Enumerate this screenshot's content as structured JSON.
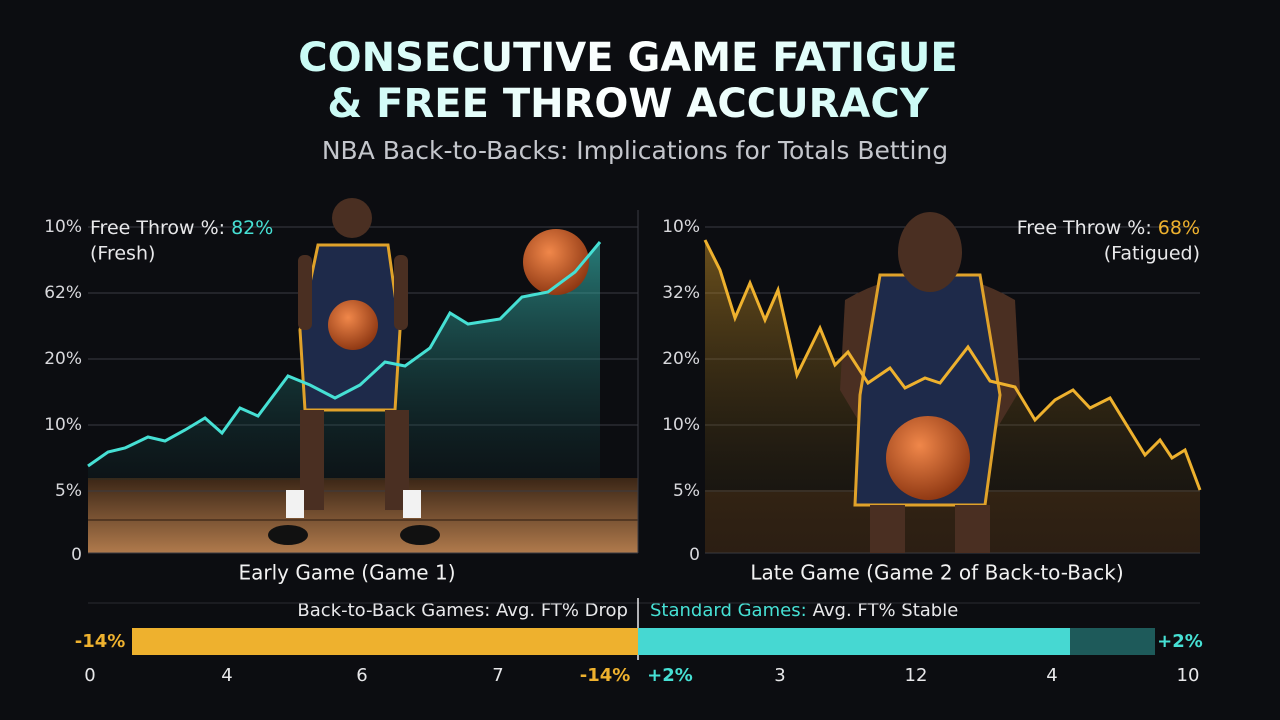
{
  "header": {
    "title_line1": "CONSECUTIVE GAME FATIGUE",
    "title_line2": "& FREE THROW ACCURACY",
    "subtitle": "NBA Back-to-Backs: Implications for Totals Betting"
  },
  "panels": [
    {
      "axis_labels": [
        "10%",
        "62%",
        "20%",
        "10%",
        "5%",
        "0"
      ],
      "stat_label": "Free Throw %:",
      "stat_value": "82%",
      "stat_note": "(Fresh)",
      "caption": "Early Game (Game 1)"
    },
    {
      "axis_labels": [
        "10%",
        "32%",
        "20%",
        "10%",
        "5%",
        "0"
      ],
      "stat_label": "Free Throw %:",
      "stat_value": "68%",
      "stat_note": "(Fatigued)",
      "caption": "Late Game (Game 2 of Back-to-Back)"
    }
  ],
  "comparison": {
    "left_label": "Back-to-Back Games: Avg. FT% Drop",
    "right_label_lead": "Standard Games:",
    "right_label_rest": "Avg. FT% Stable",
    "left_value": "-14%",
    "right_value": "+2%",
    "scale_labels": [
      "0",
      "4",
      "6",
      "7",
      "-14%",
      "+2%",
      "3",
      "12",
      "4",
      "10"
    ]
  }
}
